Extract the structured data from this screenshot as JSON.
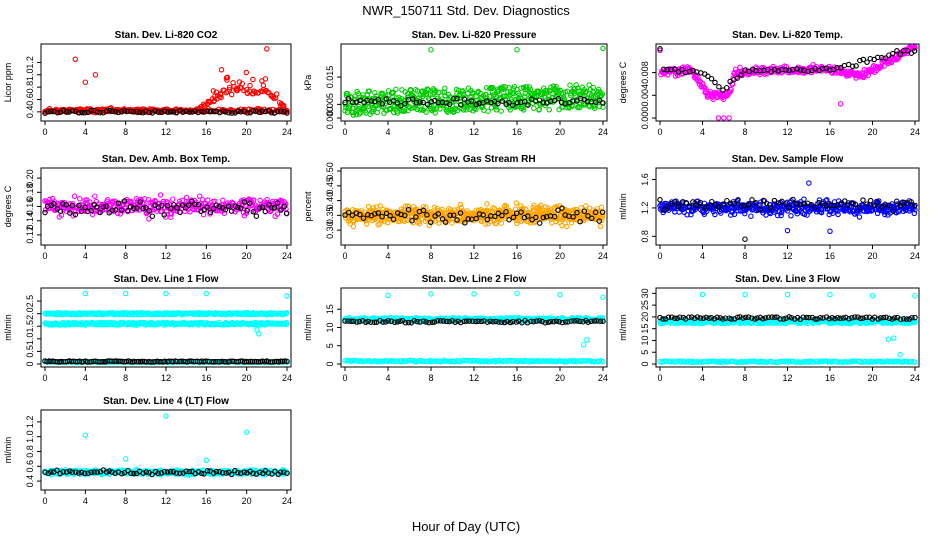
{
  "figure": {
    "title": "NWR_150711  Std. Dev. Diagnostics",
    "xlabel": "Hour of Day (UTC)"
  },
  "chart_data": [
    {
      "type": "scatter",
      "title": "Stan. Dev. Li-820 CO2",
      "ylabel": "Licor ppm",
      "xlim": [
        0,
        24
      ],
      "ylim": [
        0.3,
        1.45
      ],
      "xticks": [
        0,
        4,
        8,
        12,
        16,
        20,
        24
      ],
      "yticks": [
        0.4,
        0.6,
        0.8,
        1.0,
        1.2
      ],
      "ytick_labels": [
        "0.4",
        "0.6",
        "0.8",
        "1.0",
        "1.2"
      ],
      "series": [
        {
          "name": "red",
          "color": "#ff0000",
          "generator": {
            "kind": "baseline_rising",
            "n": 420,
            "base": 0.42,
            "noise": 0.05,
            "rise_start": 15,
            "rise_amp": 0.25,
            "rise_noise": 0.15,
            "seed": 11
          },
          "outliers": [
            [
              3,
              1.25
            ],
            [
              5,
              1.0
            ],
            [
              4,
              0.88
            ],
            [
              22,
              1.42
            ],
            [
              18,
              0.95
            ],
            [
              17.5,
              1.08
            ]
          ]
        },
        {
          "name": "black",
          "color": "#000000",
          "generator": {
            "kind": "noise",
            "n": 80,
            "base": 0.4,
            "noise": 0.04,
            "seed": 12
          }
        }
      ]
    },
    {
      "type": "scatter",
      "title": "Stan. Dev. Li-820 Pressure",
      "ylabel": "kPa",
      "xlim": [
        0,
        24
      ],
      "ylim": [
        0,
        0.026
      ],
      "xticks": [
        0,
        4,
        8,
        12,
        16,
        20,
        24
      ],
      "yticks": [
        0,
        0.005,
        0.015
      ],
      "ytick_labels": [
        "0.000",
        "0.005",
        "0.015"
      ],
      "series": [
        {
          "name": "green",
          "color": "#00cc00",
          "generator": {
            "kind": "banded",
            "n": 520,
            "base": 0.0055,
            "noise": 0.0045,
            "trend": 0.0001,
            "seed": 21
          },
          "outliers": [
            [
              8,
              0.025
            ],
            [
              16,
              0.025
            ],
            [
              24,
              0.0255
            ]
          ]
        },
        {
          "name": "black",
          "color": "#000000",
          "generator": {
            "kind": "noise",
            "n": 70,
            "base": 0.006,
            "noise": 0.002,
            "seed": 22
          }
        }
      ]
    },
    {
      "type": "scatter",
      "title": "Stan. Dev. Li-820 Temp.",
      "ylabel": "degrees C",
      "xlim": [
        0,
        24
      ],
      "ylim": [
        0,
        0.0125
      ],
      "xticks": [
        0,
        4,
        8,
        12,
        16,
        20,
        24
      ],
      "yticks": [
        0,
        0.004,
        0.008
      ],
      "ytick_labels": [
        "0.000",
        "0.004",
        "0.008"
      ],
      "series": [
        {
          "name": "magenta",
          "color": "#ff00ff",
          "generator": {
            "kind": "piecewise",
            "n": 380,
            "noise": 0.0012,
            "seed": 31,
            "knots": [
              [
                0,
                0.008
              ],
              [
                3,
                0.0085
              ],
              [
                4.5,
                0.004
              ],
              [
                6.5,
                0.004
              ],
              [
                7,
                0.008
              ],
              [
                12,
                0.0085
              ],
              [
                16,
                0.0085
              ],
              [
                19,
                0.0075
              ],
              [
                21,
                0.0095
              ],
              [
                24,
                0.0125
              ]
            ]
          },
          "outliers": [
            [
              6,
              0.0
            ],
            [
              5.5,
              0.0
            ],
            [
              6.5,
              0.0
            ],
            [
              17,
              0.0025
            ]
          ]
        },
        {
          "name": "black",
          "color": "#000000",
          "generator": {
            "kind": "piecewise",
            "n": 70,
            "noise": 0.0008,
            "seed": 32,
            "knots": [
              [
                0,
                0.0085
              ],
              [
                4,
                0.008
              ],
              [
                6,
                0.005
              ],
              [
                8,
                0.0085
              ],
              [
                16,
                0.0085
              ],
              [
                24,
                0.012
              ]
            ]
          }
        }
      ]
    },
    {
      "type": "scatter",
      "title": "Stan. Dev. Amb. Box Temp.",
      "ylabel": "degrees C",
      "xlim": [
        0,
        24
      ],
      "ylim": [
        0.11,
        0.21
      ],
      "xticks": [
        0,
        4,
        8,
        12,
        16,
        20,
        24
      ],
      "yticks": [
        0.12,
        0.14,
        0.16,
        0.18,
        0.2
      ],
      "ytick_labels": [
        "0.12",
        "0.14",
        "0.16",
        "0.18",
        "0.20"
      ],
      "series": [
        {
          "name": "magenta",
          "color": "#ff00ff",
          "generator": {
            "kind": "noise",
            "n": 360,
            "base": 0.16,
            "noise": 0.02,
            "seed": 41
          }
        },
        {
          "name": "black",
          "color": "#000000",
          "generator": {
            "kind": "noise",
            "n": 80,
            "base": 0.157,
            "noise": 0.015,
            "seed": 42
          }
        }
      ]
    },
    {
      "type": "scatter",
      "title": "Stan. Dev. Gas Stream RH",
      "ylabel": "percent",
      "xlim": [
        0,
        24
      ],
      "ylim": [
        0.26,
        0.5
      ],
      "xticks": [
        0,
        4,
        8,
        12,
        16,
        20,
        24
      ],
      "yticks": [
        0.3,
        0.35,
        0.4,
        0.45,
        0.5
      ],
      "ytick_labels": [
        "0.30",
        "0.35",
        "0.40",
        "0.45",
        "0.50"
      ],
      "series": [
        {
          "name": "orange",
          "color": "#ffa500",
          "generator": {
            "kind": "noise",
            "n": 560,
            "base": 0.35,
            "noise": 0.05,
            "seed": 51
          }
        },
        {
          "name": "black",
          "color": "#000000",
          "generator": {
            "kind": "noise",
            "n": 70,
            "base": 0.35,
            "noise": 0.035,
            "seed": 52
          }
        }
      ]
    },
    {
      "type": "scatter",
      "title": "Stan. Dev. Sample Flow",
      "ylabel": "ml/min",
      "xlim": [
        0,
        24
      ],
      "ylim": [
        0.72,
        1.72
      ],
      "xticks": [
        0,
        4,
        8,
        12,
        16,
        20,
        24
      ],
      "yticks": [
        0.8,
        1.2,
        1.6
      ],
      "ytick_labels": [
        "0.8",
        "1.2",
        "1.6"
      ],
      "series": [
        {
          "name": "blue",
          "color": "#0000ff",
          "generator": {
            "kind": "noise",
            "n": 440,
            "base": 1.2,
            "noise": 0.16,
            "seed": 61
          },
          "outliers": [
            [
              12,
              0.88
            ],
            [
              16,
              0.87
            ],
            [
              14,
              1.55
            ]
          ]
        },
        {
          "name": "black",
          "color": "#000000",
          "generator": {
            "kind": "noise",
            "n": 70,
            "base": 1.26,
            "noise": 0.13,
            "seed": 62
          },
          "outliers": [
            [
              8,
              0.76
            ]
          ]
        }
      ]
    },
    {
      "type": "scatter",
      "title": "Stan. Dev. Line 1 Flow",
      "ylabel": "ml/min",
      "xlim": [
        0,
        24
      ],
      "ylim": [
        0,
        2.9
      ],
      "xticks": [
        0,
        4,
        8,
        12,
        16,
        20,
        24
      ],
      "yticks": [
        0,
        0.5,
        1.0,
        1.5,
        2.0,
        2.5
      ],
      "ytick_labels": [
        "0",
        "0.5",
        "1.0",
        "1.5",
        "2.0",
        "2.5"
      ],
      "series": [
        {
          "name": "cyan upper",
          "color": "#00ffff",
          "generator": {
            "kind": "band",
            "n": 300,
            "base": 2.0,
            "noise": 0.04,
            "seed": 71
          }
        },
        {
          "name": "cyan lower",
          "color": "#00ffff",
          "generator": {
            "kind": "band",
            "n": 300,
            "base": 1.6,
            "noise": 0.05,
            "seed": 72
          },
          "outliers": [
            [
              21,
              1.35
            ],
            [
              21.2,
              1.2
            ],
            [
              4,
              2.8
            ],
            [
              8,
              2.8
            ],
            [
              12,
              2.8
            ],
            [
              16,
              2.8
            ],
            [
              24,
              2.7
            ]
          ]
        },
        {
          "name": "cyan zero",
          "color": "#00ffff",
          "generator": {
            "kind": "band",
            "n": 160,
            "base": 0.08,
            "noise": 0.02,
            "seed": 73
          }
        },
        {
          "name": "black",
          "color": "#000000",
          "generator": {
            "kind": "band",
            "n": 120,
            "base": 0.1,
            "noise": 0.02,
            "seed": 74
          }
        }
      ]
    },
    {
      "type": "scatter",
      "title": "Stan. Dev. Line 2 Flow",
      "ylabel": "ml/min",
      "xlim": [
        0,
        24
      ],
      "ylim": [
        0,
        20
      ],
      "xticks": [
        0,
        4,
        8,
        12,
        16,
        20,
        24
      ],
      "yticks": [
        0,
        5,
        10,
        15
      ],
      "ytick_labels": [
        "0",
        "5",
        "10",
        "15"
      ],
      "series": [
        {
          "name": "cyan",
          "color": "#00ffff",
          "generator": {
            "kind": "band",
            "n": 360,
            "base": 12.2,
            "noise": 0.5,
            "seed": 81
          },
          "outliers": [
            [
              4,
              18.8
            ],
            [
              8,
              19.2
            ],
            [
              12,
              19.2
            ],
            [
              16,
              19.4
            ],
            [
              20,
              19.0
            ],
            [
              24,
              18.3
            ],
            [
              22.2,
              5.3
            ],
            [
              22.5,
              6.6
            ]
          ]
        },
        {
          "name": "cyan zero",
          "color": "#00ffff",
          "generator": {
            "kind": "band",
            "n": 160,
            "base": 0.8,
            "noise": 0.2,
            "seed": 82
          }
        },
        {
          "name": "black",
          "color": "#000000",
          "generator": {
            "kind": "band",
            "n": 90,
            "base": 11.6,
            "noise": 0.3,
            "seed": 83
          }
        }
      ]
    },
    {
      "type": "scatter",
      "title": "Stan. Dev. Line 3 Flow",
      "ylabel": "ml/min",
      "xlim": [
        0,
        24
      ],
      "ylim": [
        0,
        31
      ],
      "xticks": [
        0,
        4,
        8,
        12,
        16,
        20,
        24
      ],
      "yticks": [
        0,
        5,
        10,
        15,
        20,
        25,
        30
      ],
      "ytick_labels": [
        "0",
        "5",
        "10",
        "15",
        "20",
        "25",
        "30"
      ],
      "series": [
        {
          "name": "cyan",
          "color": "#00ffff",
          "generator": {
            "kind": "band",
            "n": 360,
            "base": 18.0,
            "noise": 0.8,
            "seed": 91
          },
          "outliers": [
            [
              4,
              29.5
            ],
            [
              8,
              29.5
            ],
            [
              12,
              29.5
            ],
            [
              16,
              29.5
            ],
            [
              20,
              29
            ],
            [
              24,
              29
            ],
            [
              21.5,
              10.5
            ],
            [
              22,
              11
            ],
            [
              22.6,
              4
            ]
          ]
        },
        {
          "name": "cyan zero",
          "color": "#00ffff",
          "generator": {
            "kind": "band",
            "n": 160,
            "base": 1.0,
            "noise": 0.3,
            "seed": 92
          }
        },
        {
          "name": "black",
          "color": "#000000",
          "generator": {
            "kind": "band",
            "n": 90,
            "base": 19.5,
            "noise": 0.5,
            "seed": 93
          }
        }
      ]
    },
    {
      "type": "scatter",
      "title": "Stan. Dev. Line 4 (LT) Flow",
      "ylabel": "ml/min",
      "xlim": [
        0,
        24
      ],
      "ylim": [
        0.32,
        1.32
      ],
      "xticks": [
        0,
        4,
        8,
        12,
        16,
        20,
        24
      ],
      "yticks": [
        0.4,
        0.6,
        0.8,
        1.0,
        1.2
      ],
      "ytick_labels": [
        "0.4",
        "0.6",
        "0.8",
        "1.0",
        "1.2"
      ],
      "series": [
        {
          "name": "cyan",
          "color": "#00ffff",
          "generator": {
            "kind": "noise",
            "n": 440,
            "base": 0.52,
            "noise": 0.05,
            "seed": 101
          },
          "outliers": [
            [
              4,
              1.02
            ],
            [
              12,
              1.28
            ],
            [
              20,
              1.06
            ],
            [
              8,
              0.7
            ],
            [
              16,
              0.68
            ]
          ]
        },
        {
          "name": "black",
          "color": "#000000",
          "generator": {
            "kind": "noise",
            "n": 80,
            "base": 0.52,
            "noise": 0.04,
            "seed": 102
          }
        }
      ]
    }
  ]
}
